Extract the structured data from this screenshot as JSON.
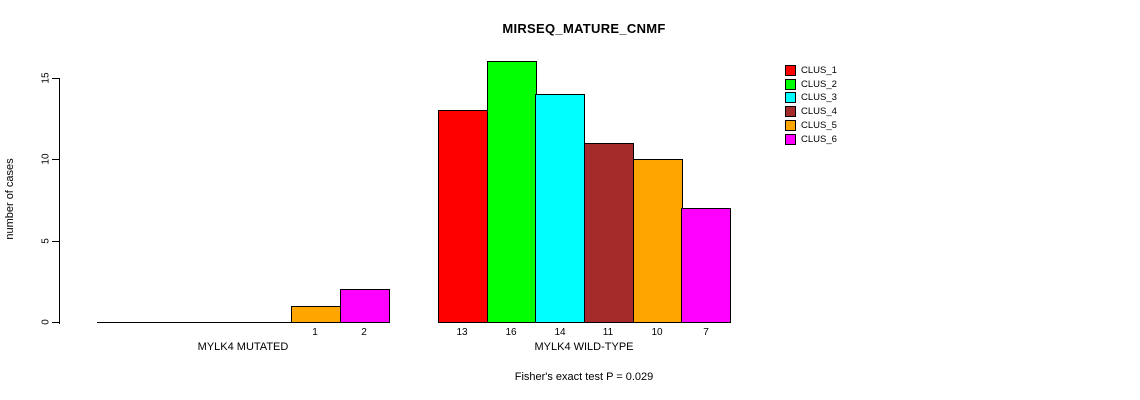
{
  "chart_data": {
    "type": "bar",
    "title": "MIRSEQ_MATURE_CNMF",
    "ylabel": "number of cases",
    "xlabel": "",
    "ylim": [
      0,
      16.5
    ],
    "yticks": [
      0,
      5,
      10,
      15
    ],
    "grid": false,
    "legend_position": "top-right",
    "legend": [
      {
        "label": "CLUS_1",
        "color": "#FF0000"
      },
      {
        "label": "CLUS_2",
        "color": "#00FF00"
      },
      {
        "label": "CLUS_3",
        "color": "#00FFFF"
      },
      {
        "label": "CLUS_4",
        "color": "#A52A2A"
      },
      {
        "label": "CLUS_5",
        "color": "#FFA500"
      },
      {
        "label": "CLUS_6",
        "color": "#FF00FF"
      }
    ],
    "categories": [
      "MYLK4 MUTATED",
      "MYLK4 WILD-TYPE"
    ],
    "series": [
      {
        "name": "CLUS_1",
        "values": [
          0,
          13
        ]
      },
      {
        "name": "CLUS_2",
        "values": [
          0,
          16
        ]
      },
      {
        "name": "CLUS_3",
        "values": [
          0,
          14
        ]
      },
      {
        "name": "CLUS_4",
        "values": [
          0,
          11
        ]
      },
      {
        "name": "CLUS_5",
        "values": [
          1,
          10
        ]
      },
      {
        "name": "CLUS_6",
        "values": [
          2,
          7
        ]
      }
    ],
    "groups": [
      {
        "label": "MYLK4 MUTATED",
        "values": [
          0,
          0,
          0,
          0,
          1,
          2
        ],
        "bar_labels": [
          "",
          "",
          "",
          "",
          "1",
          "2"
        ]
      },
      {
        "label": "MYLK4 WILD-TYPE",
        "values": [
          13,
          16,
          14,
          11,
          10,
          7
        ],
        "bar_labels": [
          "13",
          "16",
          "14",
          "11",
          "10",
          "7"
        ]
      }
    ],
    "annotation": "Fisher's exact test P = 0.029",
    "axis_color": "#000000",
    "background_color": "#FFFFFF"
  }
}
